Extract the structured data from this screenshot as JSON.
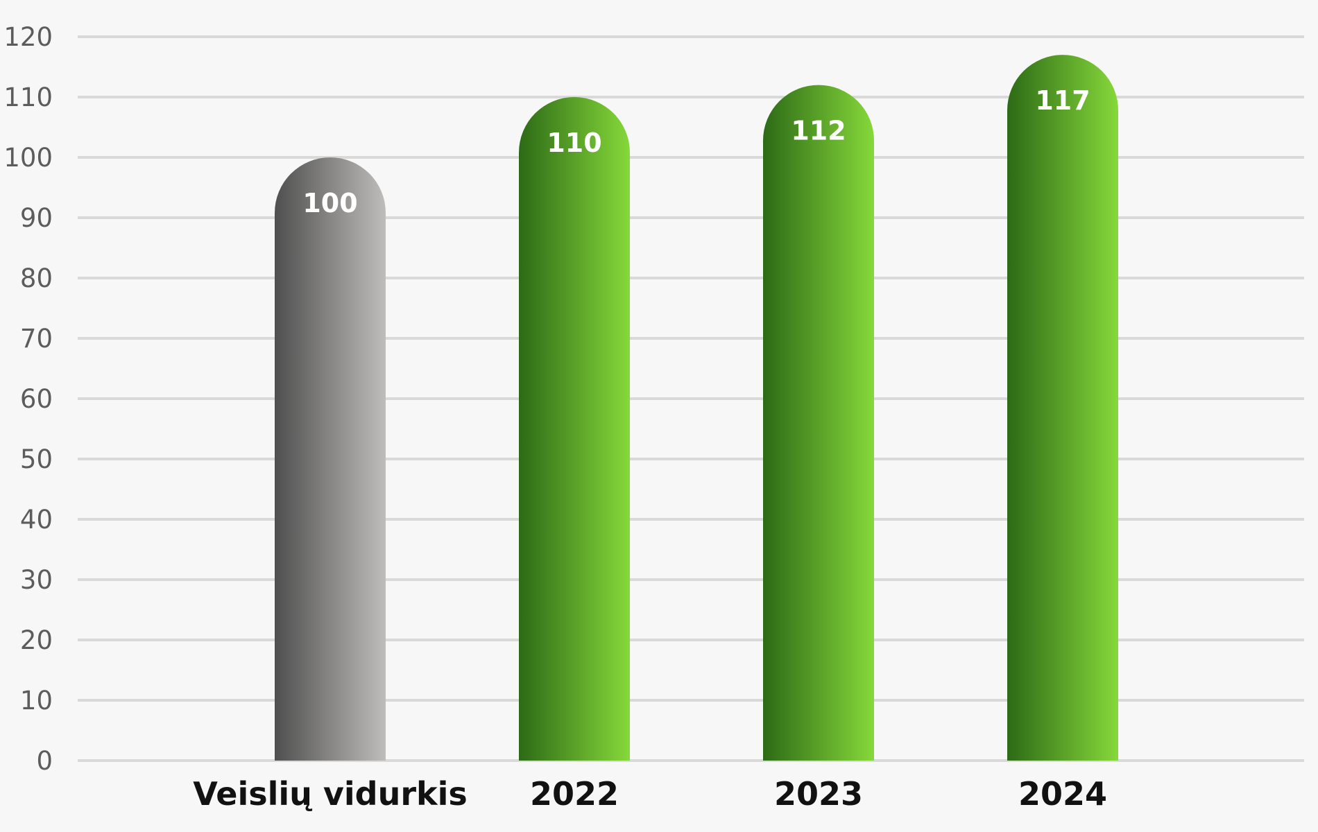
{
  "chart_data": {
    "type": "bar",
    "categories": [
      "Veislių vidurkis",
      "2022",
      "2023",
      "2024"
    ],
    "values": [
      100,
      110,
      112,
      117
    ],
    "value_labels": [
      "100",
      "110",
      "112",
      "117"
    ],
    "y_ticks": [
      "0",
      "10",
      "20",
      "30",
      "40",
      "50",
      "60",
      "70",
      "80",
      "90",
      "100",
      "110",
      "120"
    ],
    "ylim": [
      0,
      120
    ],
    "grid": true,
    "legend": "none",
    "bar_styles": [
      "gray",
      "green",
      "green",
      "green"
    ],
    "colors": {
      "gray_start": "#4f4f4f",
      "gray_end": "#bfbdbb",
      "green_start": "#2d6a16",
      "green_end": "#86d83a",
      "grid": "#d9d9d9",
      "background": "#f7f7f7"
    }
  }
}
